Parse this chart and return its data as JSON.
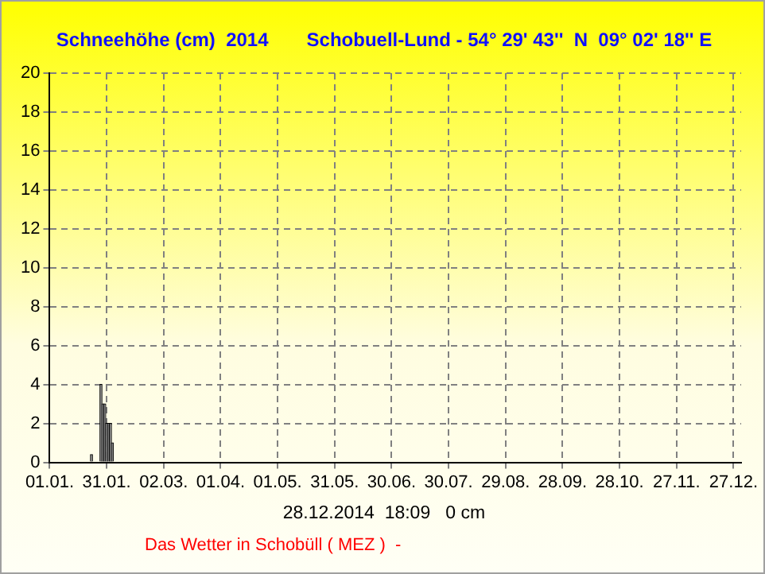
{
  "chart_data": {
    "type": "bar",
    "title": "Schneehöhe (cm)  2014",
    "subtitle": "Schobuell-Lund - 54° 29' 43''  N  09° 02' 18'' E",
    "x": [
      "--01-23",
      "--01-28",
      "--01-29",
      "--01-30",
      "--01-31",
      "--02-01",
      "--02-02",
      "--02-03"
    ],
    "series": [
      {
        "color": "#808080",
        "values": [
          0.4,
          4,
          3,
          3,
          2,
          2,
          2,
          1
        ]
      }
    ],
    "xlim": [
      "--01-01",
      "--12-31"
    ],
    "xticks": [
      {
        "value": "--01-01",
        "label": "01.01."
      },
      {
        "value": "--01-31",
        "label": "31.01."
      },
      {
        "value": "--03-02",
        "label": "02.03."
      },
      {
        "value": "--04-01",
        "label": "01.04."
      },
      {
        "value": "--05-01",
        "label": "01.05."
      },
      {
        "value": "--05-31",
        "label": "31.05."
      },
      {
        "value": "--06-30",
        "label": "30.06."
      },
      {
        "value": "--07-30",
        "label": "30.07."
      },
      {
        "value": "--08-29",
        "label": "29.08."
      },
      {
        "value": "--09-28",
        "label": "28.09."
      },
      {
        "value": "--10-28",
        "label": "28.10."
      },
      {
        "value": "--11-27",
        "label": "27.11."
      },
      {
        "value": "--12-27",
        "label": "27.12."
      }
    ],
    "ylim": [
      0,
      20
    ],
    "yticks": [
      0,
      2,
      4,
      6,
      8,
      10,
      12,
      14,
      16,
      18,
      20
    ],
    "grid": true,
    "annotations": [
      "28.12.2014  18:09   0 cm",
      "Das Wetter in Schobüll ( MEZ )  -"
    ]
  }
}
